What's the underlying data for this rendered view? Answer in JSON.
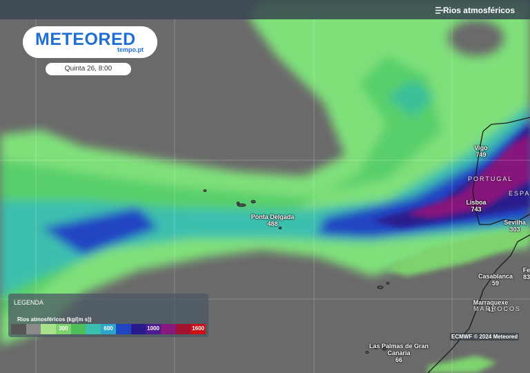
{
  "header": {
    "layer_title": "Rios atmosféricos"
  },
  "logo": {
    "brand": "METEORED",
    "site": "tempo.pt"
  },
  "time": "Quinta 26, 8:00",
  "places": [
    {
      "name": "Vigo",
      "value": 749
    },
    {
      "name": "Lisboa",
      "value": 743
    },
    {
      "name": "Sevilha",
      "value": 303
    },
    {
      "name": "Ponta Delgada",
      "value": 488
    },
    {
      "name": "Casablanca",
      "value": 59
    },
    {
      "name": "Fe",
      "value": 83
    },
    {
      "name": "Marraquexe",
      "value": 41
    },
    {
      "name": "Las Palmas de Gran Canaria",
      "value": 66
    }
  ],
  "regions": [
    "PORTUGAL",
    "ESPA",
    "MARROCOS"
  ],
  "legend": {
    "title": "LEGENDA",
    "subtitle": "Rios atmosféricos (kg/(m s))",
    "colors": [
      "#555555",
      "#8a8a8a",
      "#a6e38a",
      "#7ed36e",
      "#4cbf5a",
      "#3cbfae",
      "#2ea6c9",
      "#2045c2",
      "#271a8c",
      "#4c1a92",
      "#87187c",
      "#a0122e",
      "#cc1018"
    ],
    "labels": [
      300,
      600,
      1000,
      1600
    ]
  },
  "credit": "ECMWF © 2024 Meteored"
}
